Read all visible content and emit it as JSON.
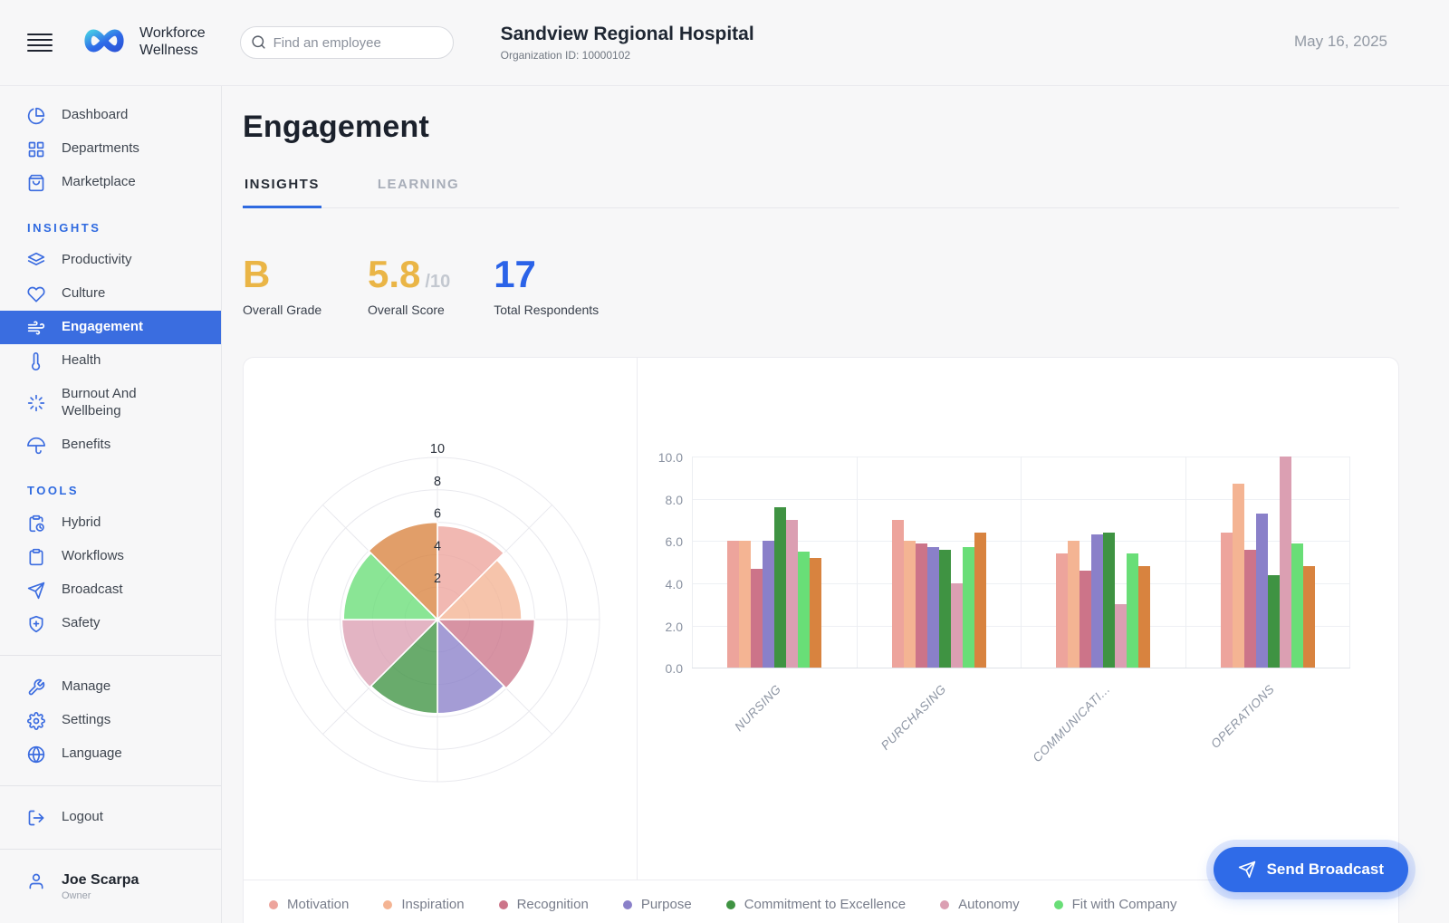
{
  "theme": {
    "accent": "#3a6de0",
    "amber": "#eab546",
    "blue": "#2b63e8"
  },
  "header": {
    "brand_line1": "Workforce",
    "brand_line2": "Wellness",
    "search_placeholder": "Find an employee",
    "org_name": "Sandview Regional Hospital",
    "org_id": "Organization ID: 10000102",
    "date": "May 16, 2025"
  },
  "sidebar": {
    "main_items": [
      {
        "label": "Dashboard"
      },
      {
        "label": "Departments"
      },
      {
        "label": "Marketplace"
      }
    ],
    "insights_section": "INSIGHTS",
    "insights_items": [
      {
        "label": "Productivity"
      },
      {
        "label": "Culture"
      },
      {
        "label": "Engagement",
        "active": true
      },
      {
        "label": "Health"
      },
      {
        "label": "Burnout And Wellbeing"
      },
      {
        "label": "Benefits"
      }
    ],
    "tools_section": "TOOLS",
    "tools_items": [
      {
        "label": "Hybrid"
      },
      {
        "label": "Workflows"
      },
      {
        "label": "Broadcast"
      },
      {
        "label": "Safety"
      }
    ],
    "manage_items": [
      {
        "label": "Manage"
      },
      {
        "label": "Settings"
      },
      {
        "label": "Language"
      }
    ],
    "logout_label": "Logout",
    "user": {
      "name": "Joe Scarpa",
      "role": "Owner"
    }
  },
  "page": {
    "title": "Engagement",
    "tabs": [
      {
        "label": "INSIGHTS",
        "active": true
      },
      {
        "label": "LEARNING",
        "active": false
      }
    ],
    "stats": [
      {
        "value": "B",
        "suffix": "",
        "label": "Overall Grade",
        "color": "#eab546"
      },
      {
        "value": "5.8",
        "suffix": "/10",
        "label": "Overall Score",
        "color": "#eab546"
      },
      {
        "value": "17",
        "suffix": "",
        "label": "Total Respondents",
        "color": "#2b63e8"
      }
    ]
  },
  "send_broadcast_label": "Send Broadcast",
  "chart_data": [
    {
      "type": "polar_area",
      "description": "Overall engagement score per category, 8 equal 45-degree sectors clockwise from north",
      "rlim": [
        0,
        10
      ],
      "radial_ticks": [
        2,
        4,
        6,
        8,
        10
      ],
      "grid": true,
      "series": [
        {
          "name": "Motivation",
          "value": 5.8,
          "color": "#eda49c"
        },
        {
          "name": "Inspiration",
          "value": 5.2,
          "color": "#f4b493"
        },
        {
          "name": "Recognition",
          "value": 6.0,
          "color": "#cc7489"
        },
        {
          "name": "Purpose",
          "value": 5.8,
          "color": "#8a80c9"
        },
        {
          "name": "Commitment to Excellence",
          "value": 5.8,
          "color": "#3f9342"
        },
        {
          "name": "Autonomy",
          "value": 5.9,
          "color": "#db9fb2"
        },
        {
          "name": "Fit with Company",
          "value": 5.8,
          "color": "#69de77"
        },
        {
          "name": "",
          "value": 6.0,
          "color": "#d8833f"
        }
      ]
    },
    {
      "type": "bar",
      "description": "Engagement category scores by department",
      "categories": [
        "NURSING",
        "PURCHASING",
        "COMMUNICATI...",
        "OPERATIONS"
      ],
      "y_ticks": [
        "10.0",
        "8.0",
        "6.0",
        "4.0",
        "2.0",
        "0.0"
      ],
      "ylim": [
        0,
        10
      ],
      "grid": true,
      "legend_position": "bottom",
      "series": [
        {
          "name": "Motivation",
          "color": "#eda49c",
          "values": [
            6.0,
            7.0,
            5.4,
            6.4
          ]
        },
        {
          "name": "Inspiration",
          "color": "#f4b493",
          "values": [
            6.0,
            6.0,
            6.0,
            8.7
          ]
        },
        {
          "name": "Recognition",
          "color": "#cc7489",
          "values": [
            4.7,
            5.9,
            4.6,
            5.6
          ]
        },
        {
          "name": "Purpose",
          "color": "#8a80c9",
          "values": [
            6.0,
            5.7,
            6.3,
            7.3
          ]
        },
        {
          "name": "Commitment to Excellence",
          "color": "#3f9342",
          "values": [
            7.6,
            5.6,
            6.4,
            4.4
          ]
        },
        {
          "name": "Autonomy",
          "color": "#db9fb2",
          "values": [
            7.0,
            4.0,
            3.0,
            10.0
          ]
        },
        {
          "name": "Fit with Company",
          "color": "#69de77",
          "values": [
            5.5,
            5.7,
            5.4,
            5.9
          ]
        },
        {
          "name": "",
          "color": "#d8833f",
          "values": [
            5.2,
            6.4,
            4.8,
            4.8
          ]
        }
      ]
    }
  ]
}
